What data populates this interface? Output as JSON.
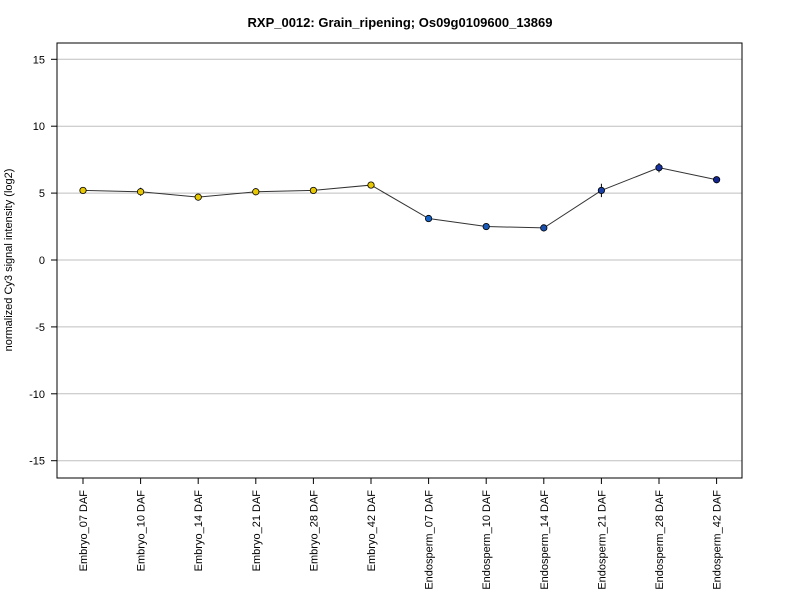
{
  "chart_data": {
    "type": "line",
    "title": "RXP_0012: Grain_ripening; Os09g0109600_13869",
    "ylabel": "normalized Cy3 signal intensity (log2)",
    "xlabel": "",
    "ylim": [
      -16.3,
      16.3
    ],
    "y_ticks": [
      -15,
      -10,
      -5,
      0,
      5,
      10,
      15
    ],
    "grid": true,
    "legend": "none",
    "categories": [
      "Embryo_07 DAF",
      "Embryo_10 DAF",
      "Embryo_14 DAF",
      "Embryo_21 DAF",
      "Embryo_28 DAF",
      "Embryo_42 DAF",
      "Endosperm_07 DAF",
      "Endosperm_10 DAF",
      "Endosperm_14 DAF",
      "Endosperm_21 DAF",
      "Endosperm_28 DAF",
      "Endosperm_42 DAF"
    ],
    "series": [
      {
        "values": [
          5.2,
          5.1,
          4.7,
          5.1,
          5.2,
          5.6,
          3.1,
          2.5,
          2.4,
          5.2,
          6.9,
          6.0
        ],
        "error": [
          0.15,
          0.3,
          0.15,
          0.15,
          0.2,
          0.15,
          0.2,
          0.15,
          0.25,
          0.5,
          0.35,
          0.2
        ],
        "point_colors": [
          "#e8c800",
          "#e8c800",
          "#e8c800",
          "#e8c800",
          "#e8c800",
          "#e8c800",
          "#1464c8",
          "#1a5ab8",
          "#1a4fae",
          "#1a40a6",
          "#1532a0",
          "#12258f"
        ]
      }
    ]
  },
  "colors": {
    "line": "#333333",
    "grid": "#bfbfbf",
    "frame": "#000000",
    "point_stroke": "#000000"
  }
}
